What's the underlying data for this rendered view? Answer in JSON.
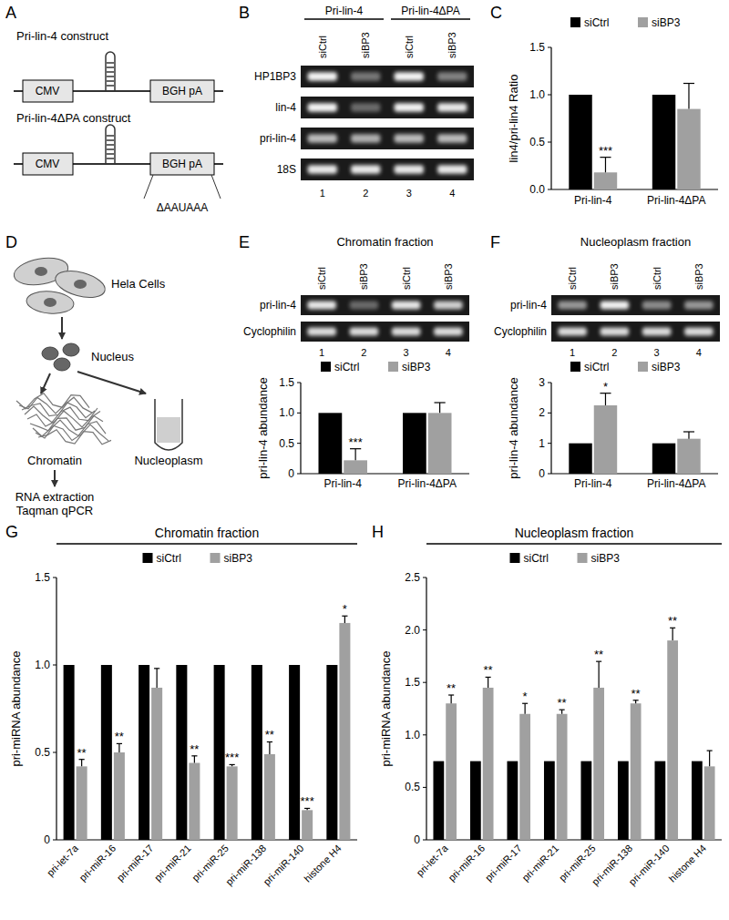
{
  "panel_labels": [
    "A",
    "B",
    "C",
    "D",
    "E",
    "F",
    "G",
    "H"
  ],
  "construct_diagram": {
    "constructs": [
      {
        "title": "Pri-lin-4 construct",
        "promoter": "CMV",
        "polya": "BGH pA"
      },
      {
        "title": "Pri-lin-4ΔPA construct",
        "promoter": "CMV",
        "polya": "BGH pA",
        "deletion": "ΔAAUAAA"
      }
    ]
  },
  "fractionation_diagram": {
    "cells": "Hela Cells",
    "nucleus": "Nucleus",
    "chromatin": "Chromatin",
    "nucleoplasm": "Nucleoplasm",
    "steps": [
      "RNA extraction",
      "Taqman qPCR"
    ]
  },
  "gels": [
    {
      "groups": [
        "Pri-lin-4",
        "Pri-lin-4ΔPA"
      ],
      "lanes": [
        "siCtrl",
        "siBP3",
        "siCtrl",
        "siBP3"
      ],
      "lane_numbers": [
        1,
        2,
        3,
        4
      ],
      "rows": [
        {
          "label": "HP1BP3",
          "bands": [
            0.95,
            0.4,
            0.95,
            0.45
          ]
        },
        {
          "label": "lin-4",
          "bands": [
            0.95,
            0.35,
            0.95,
            0.9
          ]
        },
        {
          "label": "pri-lin-4",
          "bands": [
            0.7,
            0.65,
            0.7,
            0.7
          ]
        },
        {
          "label": "18S",
          "bands": [
            0.9,
            0.9,
            0.9,
            0.9
          ]
        }
      ]
    },
    {
      "title": "Chromatin fraction",
      "lanes": [
        "siCtrl",
        "siBP3",
        "siCtrl",
        "siBP3"
      ],
      "lane_numbers": [
        1,
        2,
        3,
        4
      ],
      "rows": [
        {
          "label": "pri-lin-4",
          "bands": [
            0.9,
            0.35,
            0.9,
            0.8
          ]
        },
        {
          "label": "Cyclophilin",
          "bands": [
            0.85,
            0.85,
            0.85,
            0.85
          ]
        }
      ]
    },
    {
      "title": "Nucleoplasm fraction",
      "lanes": [
        "siCtrl",
        "siBP3",
        "siCtrl",
        "siBP3"
      ],
      "lane_numbers": [
        1,
        2,
        3,
        4
      ],
      "rows": [
        {
          "label": "pri-lin-4",
          "bands": [
            0.55,
            0.95,
            0.5,
            0.55
          ]
        },
        {
          "label": "Cyclophilin",
          "bands": [
            0.85,
            0.85,
            0.85,
            0.85
          ]
        }
      ]
    }
  ],
  "chart_data": [
    {
      "type": "bar",
      "ylabel": "lin4/pri-lin4 Ratio",
      "categories": [
        "Pri-lin-4",
        "Pri-lin-4ΔPA"
      ],
      "series": [
        {
          "name": "siCtrl",
          "color": "#000000",
          "values": [
            1,
            1
          ]
        },
        {
          "name": "siBP3",
          "color": "#a0a0a0",
          "values": [
            0.18,
            0.85
          ],
          "errors": [
            0.16,
            0.27
          ],
          "significance": [
            "***",
            null
          ]
        }
      ],
      "ylim": [
        0,
        1.5
      ],
      "yticks": [
        {
          "value": 0,
          "label": "0.0"
        },
        0.5,
        {
          "value": 1,
          "label": "1.0"
        },
        1.5
      ],
      "legend": "top"
    },
    {
      "type": "bar",
      "ylabel": "pri-lin-4 abundance",
      "categories": [
        "Pri-lin-4",
        "Pri-lin-4ΔPA"
      ],
      "series": [
        {
          "name": "siCtrl",
          "color": "#000000",
          "values": [
            1,
            1
          ]
        },
        {
          "name": "siBP3",
          "color": "#a0a0a0",
          "values": [
            0.22,
            1.0
          ],
          "errors": [
            0.19,
            0.17
          ],
          "significance": [
            "***",
            null
          ]
        }
      ],
      "ylim": [
        0,
        1.5
      ],
      "yticks": [
        0,
        0.5,
        {
          "value": 1,
          "label": "1.0"
        },
        1.5
      ],
      "legend": "top"
    },
    {
      "type": "bar",
      "ylabel": "pri-lin-4 abundance",
      "categories": [
        "Pri-lin-4",
        "Pri-lin-4ΔPA"
      ],
      "series": [
        {
          "name": "siCtrl",
          "color": "#000000",
          "values": [
            1,
            1
          ]
        },
        {
          "name": "siBP3",
          "color": "#a0a0a0",
          "values": [
            2.25,
            1.15
          ],
          "errors": [
            0.4,
            0.23
          ],
          "significance": [
            "*",
            null
          ]
        }
      ],
      "ylim": [
        0,
        3
      ],
      "yticks": [
        0,
        1,
        2,
        3
      ],
      "legend": "top"
    },
    {
      "type": "bar",
      "title": "Chromatin fraction",
      "ylabel": "pri-miRNA abundance",
      "categories": [
        "pri-let-7a",
        "pri-miR-16",
        "pri-miR-17",
        "pri-miR-21",
        "pri-miR-25",
        "pri-miR-138",
        "pri-miR-140",
        "histone H4"
      ],
      "series": [
        {
          "name": "siCtrl",
          "color": "#000000",
          "values": [
            1,
            1,
            1,
            1,
            1,
            1,
            1,
            1
          ]
        },
        {
          "name": "siBP3",
          "color": "#a0a0a0",
          "values": [
            0.42,
            0.5,
            0.87,
            0.44,
            0.42,
            0.49,
            0.17,
            1.24
          ],
          "errors": [
            0.04,
            0.05,
            0.11,
            0.04,
            0.01,
            0.07,
            0.01,
            0.04
          ],
          "significance": [
            "**",
            "**",
            null,
            "**",
            "***",
            "**",
            "***",
            "*"
          ]
        }
      ],
      "ylim": [
        0,
        1.5
      ],
      "yticks": [
        0,
        0.5,
        {
          "value": 1,
          "label": "1.0"
        },
        1.5
      ],
      "legend": "top"
    },
    {
      "type": "bar",
      "title": "Nucleoplasm fraction",
      "ylabel": "pri-miRNA abundance",
      "categories": [
        "pri-let-7a",
        "pri-miR-16",
        "pri-miR-17",
        "pri-miR-21",
        "pri-miR-25",
        "pri-miR-138",
        "pri-miR-140",
        "histone H4"
      ],
      "series": [
        {
          "name": "siCtrl",
          "color": "#000000",
          "values": [
            0.75,
            0.75,
            0.75,
            0.75,
            0.75,
            0.75,
            0.75,
            0.75
          ]
        },
        {
          "name": "siBP3",
          "color": "#a0a0a0",
          "values": [
            1.3,
            1.45,
            1.2,
            1.2,
            1.45,
            1.3,
            1.9,
            0.7
          ],
          "errors": [
            0.08,
            0.1,
            0.1,
            0.04,
            0.25,
            0.03,
            0.12,
            0.15
          ],
          "significance": [
            "**",
            "**",
            "*",
            "**",
            "**",
            "**",
            "**",
            null
          ]
        }
      ],
      "ylim": [
        0,
        2.5
      ],
      "yticks": [
        0,
        0.5,
        {
          "value": 1,
          "label": "1.0"
        },
        1.5,
        {
          "value": 2,
          "label": "2.0"
        },
        2.5
      ],
      "legend": "top"
    }
  ]
}
